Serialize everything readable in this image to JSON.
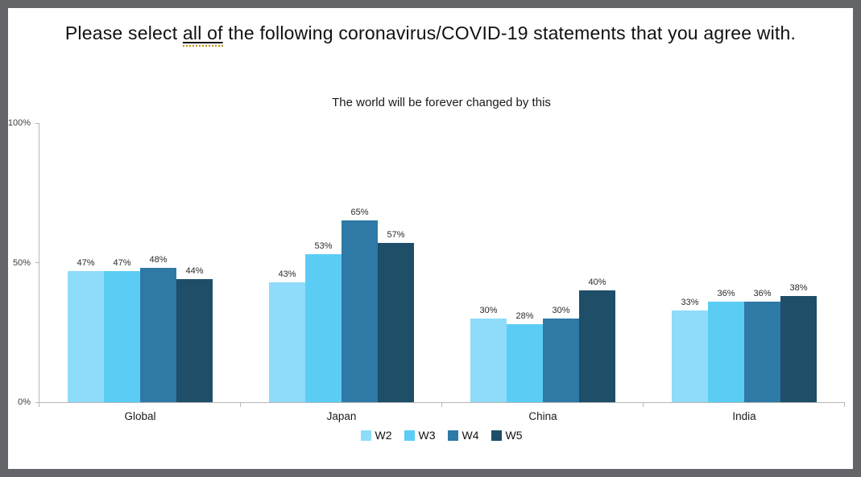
{
  "frame": {
    "border_color": "#636569",
    "background": "#ffffff"
  },
  "title": {
    "prefix": "Please select ",
    "underlined": "all of",
    "suffix": " the following coronavirus/COVID-19 statements that you agree with."
  },
  "chart_data": {
    "type": "bar",
    "title": "The world will be forever changed by this",
    "categories": [
      "Global",
      "Japan",
      "China",
      "India"
    ],
    "series": [
      {
        "name": "W2",
        "color": "#8EDCF9",
        "values": [
          47,
          43,
          30,
          33
        ]
      },
      {
        "name": "W3",
        "color": "#5BCDF5",
        "values": [
          47,
          53,
          28,
          36
        ]
      },
      {
        "name": "W4",
        "color": "#2E79A6",
        "values": [
          48,
          65,
          30,
          36
        ]
      },
      {
        "name": "W5",
        "color": "#1E4E68",
        "values": [
          44,
          57,
          40,
          38
        ]
      }
    ],
    "ylim": [
      0,
      100
    ],
    "yticks": [
      "0%",
      "50%",
      "100%"
    ],
    "value_suffix": "%",
    "grid": false,
    "legend_position": "bottom",
    "axis_color": "#b7b7b7"
  }
}
